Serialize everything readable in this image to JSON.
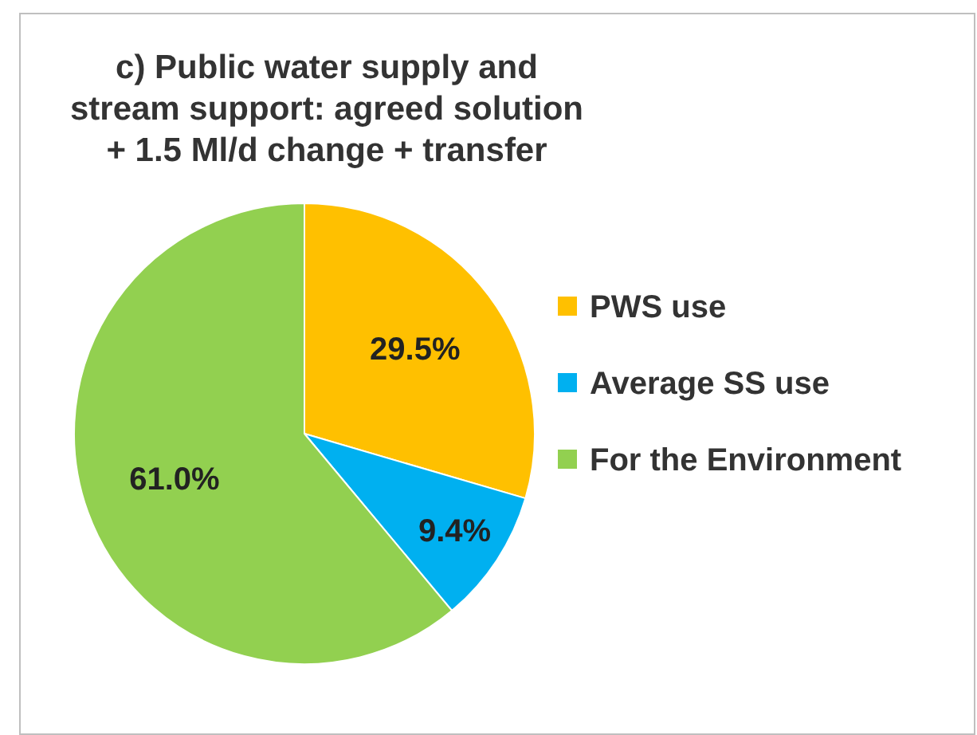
{
  "chart_data": {
    "type": "pie",
    "title": "c) Public water supply and stream support: agreed solution + 1.5 Ml/d change + transfer",
    "categories": [
      "PWS use",
      "Average SS use",
      "For the Environment"
    ],
    "values": [
      29.5,
      9.4,
      61.0
    ],
    "colors": [
      "#ffc000",
      "#00b0f0",
      "#92d050"
    ],
    "value_labels": [
      "29.5%",
      "9.4%",
      "61.0%"
    ],
    "legend": "right"
  }
}
